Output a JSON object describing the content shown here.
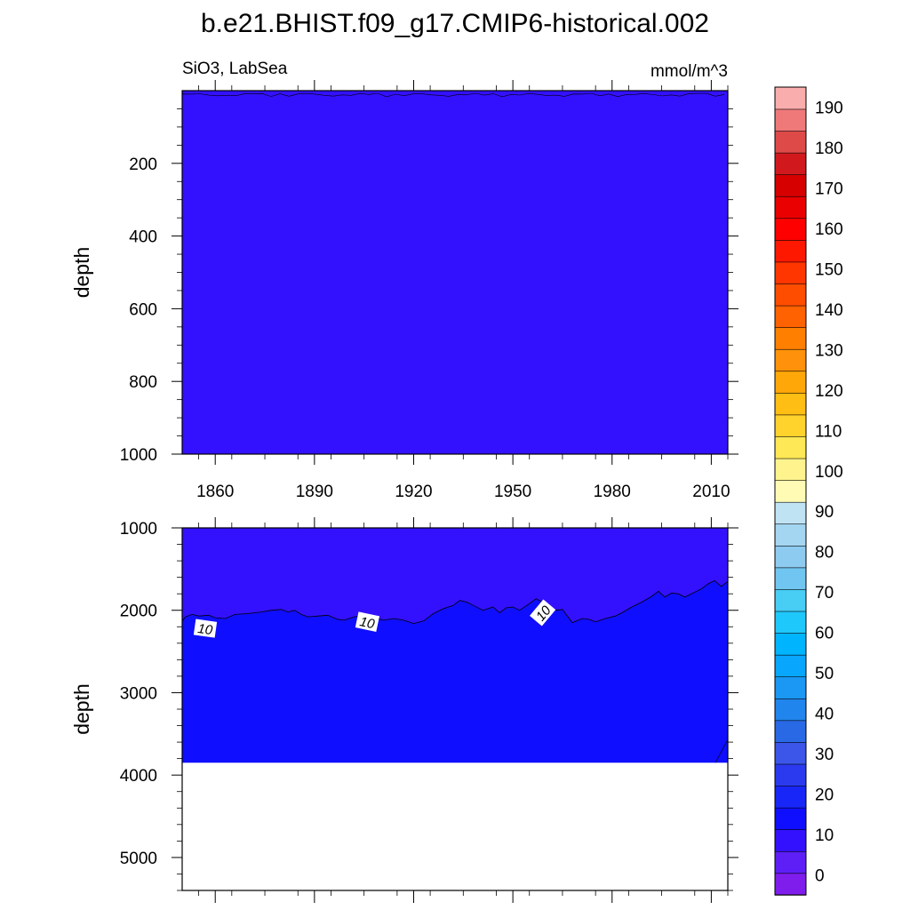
{
  "title": "b.e21.BHIST.f09_g17.CMIP6-historical.002",
  "left_string": "SiO3, LabSea",
  "right_string": "mmol/m^3",
  "colors": {
    "shallow_fill": "#3311fe",
    "deep_fill": "#0f0eff",
    "contour_line": "#000000"
  },
  "chart_data": [
    {
      "type": "heatmap",
      "name": "upper",
      "xlabel": "",
      "ylabel": "depth",
      "xlim": [
        1850,
        2015
      ],
      "ylim": [
        1000,
        0
      ],
      "xticks": [
        1860,
        1890,
        1920,
        1950,
        1980,
        2010
      ],
      "yticks": [
        200,
        400,
        600,
        800,
        1000
      ],
      "levels": {
        "0-10": "whole panel from 0 to 1000 m",
        "10-20": "none"
      }
    },
    {
      "type": "heatmap",
      "name": "lower",
      "xlabel": "",
      "ylabel": "depth",
      "xlim": [
        1850,
        2015
      ],
      "ylim": [
        5400,
        1000
      ],
      "xticks": [
        1860,
        1890,
        1920,
        1950,
        1980,
        2010
      ],
      "yticks": [
        1000,
        2000,
        3000,
        4000,
        5000
      ],
      "ocean_floor_depth": 3850,
      "contour_10": {
        "label": "10",
        "points": [
          [
            1850,
            2130
          ],
          [
            1851,
            2080
          ],
          [
            1853,
            2050
          ],
          [
            1855,
            2070
          ],
          [
            1858,
            2060
          ],
          [
            1860,
            2090
          ],
          [
            1863,
            2100
          ],
          [
            1866,
            2050
          ],
          [
            1870,
            2040
          ],
          [
            1874,
            2020
          ],
          [
            1877,
            2000
          ],
          [
            1880,
            1990
          ],
          [
            1882,
            2020
          ],
          [
            1884,
            2000
          ],
          [
            1886,
            2050
          ],
          [
            1888,
            2080
          ],
          [
            1891,
            2070
          ],
          [
            1894,
            2060
          ],
          [
            1897,
            2110
          ],
          [
            1899,
            2120
          ],
          [
            1902,
            2080
          ],
          [
            1905,
            2060
          ],
          [
            1908,
            2090
          ],
          [
            1911,
            2120
          ],
          [
            1914,
            2100
          ],
          [
            1917,
            2120
          ],
          [
            1920,
            2160
          ],
          [
            1923,
            2130
          ],
          [
            1926,
            2040
          ],
          [
            1929,
            1980
          ],
          [
            1932,
            1940
          ],
          [
            1934,
            1880
          ],
          [
            1936,
            1900
          ],
          [
            1938,
            1940
          ],
          [
            1941,
            2000
          ],
          [
            1944,
            1960
          ],
          [
            1946,
            2030
          ],
          [
            1948,
            1970
          ],
          [
            1950,
            1960
          ],
          [
            1952,
            2000
          ],
          [
            1955,
            1920
          ],
          [
            1957,
            1860
          ],
          [
            1959,
            1900
          ],
          [
            1961,
            1950
          ],
          [
            1963,
            2000
          ],
          [
            1965,
            1990
          ],
          [
            1968,
            2150
          ],
          [
            1971,
            2100
          ],
          [
            1973,
            2110
          ],
          [
            1975,
            2140
          ],
          [
            1978,
            2100
          ],
          [
            1981,
            2070
          ],
          [
            1983,
            2030
          ],
          [
            1986,
            1960
          ],
          [
            1989,
            1900
          ],
          [
            1992,
            1830
          ],
          [
            1994,
            1770
          ],
          [
            1996,
            1840
          ],
          [
            1998,
            1790
          ],
          [
            2000,
            1800
          ],
          [
            2002,
            1840
          ],
          [
            2005,
            1780
          ],
          [
            2007,
            1740
          ],
          [
            2009,
            1680
          ],
          [
            2011,
            1640
          ],
          [
            2013,
            1710
          ],
          [
            2015,
            1650
          ]
        ],
        "label_positions": [
          {
            "x": 1857,
            "y": 2220,
            "angle": 8
          },
          {
            "x": 1906,
            "y": 2140,
            "angle": 12
          },
          {
            "x": 1959,
            "y": 2030,
            "angle": -50
          }
        ]
      },
      "levels": {
        "0-10": "above the 10 contour",
        "10-20": "below the 10 contour down to the ocean floor",
        "missing": "below the ocean floor (white)"
      }
    }
  ],
  "colorbar": {
    "labels": [
      "0",
      "10",
      "20",
      "30",
      "40",
      "50",
      "60",
      "70",
      "80",
      "90",
      "100",
      "110",
      "120",
      "130",
      "140",
      "150",
      "160",
      "170",
      "180",
      "190"
    ],
    "colors": [
      "#7f1ded",
      "#5e1ff6",
      "#3311fe",
      "#0f0eff",
      "#1826f7",
      "#2b3aef",
      "#3b56e8",
      "#2a69e6",
      "#2085ec",
      "#1a98f3",
      "#08a6fc",
      "#01b4fe",
      "#1fc8fb",
      "#48cdf5",
      "#70c6f0",
      "#8ecbf0",
      "#a4d6f1",
      "#c0e3f3",
      "#fffbb5",
      "#fff38e",
      "#ffe855",
      "#ffd22c",
      "#ffbe14",
      "#ffa709",
      "#ff920a",
      "#ff7f00",
      "#ff6200",
      "#ff4d00",
      "#ff3600",
      "#ff1800",
      "#ff0000",
      "#ea0000",
      "#d60000",
      "#d1191d",
      "#de4a48",
      "#ef7979",
      "#f9adad"
    ]
  }
}
